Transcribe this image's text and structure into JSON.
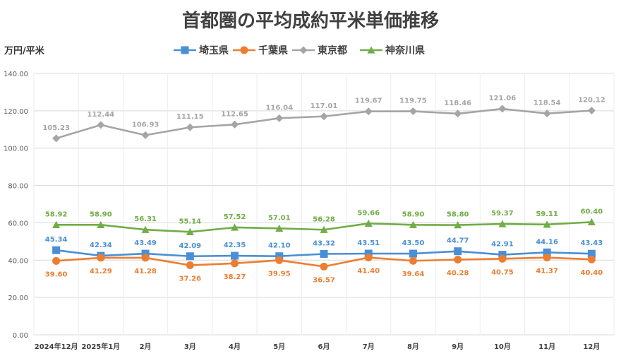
{
  "chart_data": {
    "type": "line",
    "title": "首都圏の平均成約平米単価推移",
    "ylabel": "万円/平米",
    "xlabel": "",
    "ylim": [
      0,
      140
    ],
    "yticks": [
      "0.00",
      "20.00",
      "40.00",
      "60.00",
      "80.00",
      "100.00",
      "120.00",
      "140.00"
    ],
    "grid": true,
    "legend_position": "top",
    "categories": [
      "2024年12月",
      "2025年1月",
      "2月",
      "3月",
      "4月",
      "5月",
      "6月",
      "7月",
      "8月",
      "9月",
      "10月",
      "11月",
      "12月"
    ],
    "series": [
      {
        "name": "埼玉県",
        "color": "#4a8fd6",
        "marker": "square",
        "label_position": "above",
        "values": [
          45.34,
          42.34,
          43.49,
          42.09,
          42.35,
          42.1,
          43.32,
          43.51,
          43.5,
          44.77,
          42.91,
          44.16,
          43.43
        ],
        "labels": [
          "45.34",
          "42.34",
          "43.49",
          "42.09",
          "42.35",
          "42.10",
          "43.32",
          "43.51",
          "43.50",
          "44.77",
          "42.91",
          "44.16",
          "43.43"
        ]
      },
      {
        "name": "千葉県",
        "color": "#ed7d31",
        "marker": "circle",
        "label_position": "below",
        "values": [
          39.6,
          41.29,
          41.28,
          37.26,
          38.27,
          39.95,
          36.57,
          41.4,
          39.64,
          40.28,
          40.75,
          41.37,
          40.4
        ],
        "labels": [
          "39.60",
          "41.29",
          "41.28",
          "37.26",
          "38.27",
          "39.95",
          "36.57",
          "41.40",
          "39.64",
          "40.28",
          "40.75",
          "41.37",
          "40.40"
        ]
      },
      {
        "name": "東京都",
        "color": "#a5a5a5",
        "marker": "diamond",
        "label_position": "above",
        "values": [
          105.23,
          112.44,
          106.93,
          111.15,
          112.65,
          116.04,
          117.01,
          119.67,
          119.75,
          118.46,
          121.06,
          118.54,
          120.12
        ],
        "labels": [
          "105.23",
          "112.44",
          "106.93",
          "111.15",
          "112.65",
          "116.04",
          "117.01",
          "119.67",
          "119.75",
          "118.46",
          "121.06",
          "118.54",
          "120.12"
        ]
      },
      {
        "name": "神奈川県",
        "color": "#70ad47",
        "marker": "triangle",
        "label_position": "above",
        "values": [
          58.92,
          58.9,
          56.31,
          55.14,
          57.52,
          57.01,
          56.28,
          59.66,
          58.9,
          58.8,
          59.37,
          59.11,
          60.4
        ],
        "labels": [
          "58.92",
          "58.90",
          "56.31",
          "55.14",
          "57.52",
          "57.01",
          "56.28",
          "59.66",
          "58.90",
          "58.80",
          "59.37",
          "59.11",
          "60.40"
        ]
      }
    ]
  }
}
